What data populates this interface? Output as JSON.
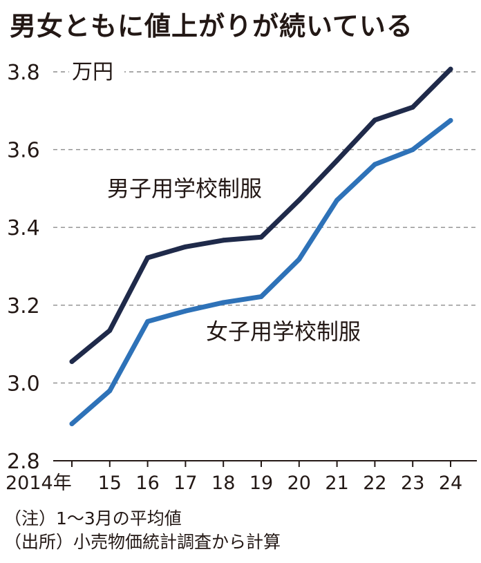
{
  "chart_data": {
    "type": "line",
    "title": "男女ともに値上がりが続いている",
    "unit": "万円",
    "categories": [
      "2014年",
      "15",
      "16",
      "17",
      "18",
      "19",
      "20",
      "21",
      "22",
      "23",
      "24"
    ],
    "series": [
      {
        "name": "男子用学校制服",
        "color": "#1f2a4a",
        "values": [
          3.055,
          3.135,
          3.322,
          3.35,
          3.367,
          3.375,
          3.47,
          3.572,
          3.676,
          3.709,
          3.807
        ]
      },
      {
        "name": "女子用学校制服",
        "color": "#2e72b8",
        "values": [
          2.895,
          2.98,
          3.158,
          3.185,
          3.207,
          3.222,
          3.318,
          3.47,
          3.562,
          3.6,
          3.675
        ]
      }
    ],
    "yticks": [
      "3.8",
      "3.6",
      "3.4",
      "3.2",
      "3.0",
      "2.8"
    ],
    "ylim": [
      2.8,
      3.8
    ],
    "grid": true
  },
  "notes": {
    "note": "（注）1～3月の平均値",
    "source": "（出所）小売物価統計調査から計算"
  }
}
